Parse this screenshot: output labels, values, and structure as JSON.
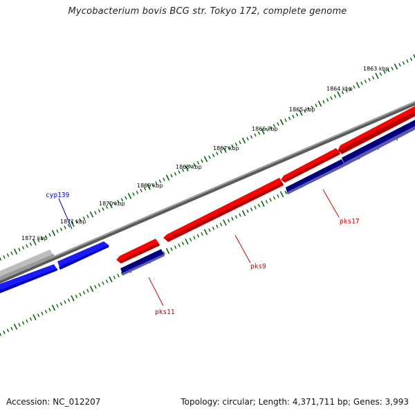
{
  "title": "Mycobacterium bovis BCG str. Tokyo 172, complete genome",
  "accession": "Accession: NC_012207",
  "summary": "Topology: circular; Length: 4,371,711 bp; Genes: 3,993",
  "colors": {
    "backbone": "#777777",
    "forward_gene": "#ff0000",
    "reverse_gene": "#000080",
    "highlight_gene": "#0000ff",
    "other_gene": "#bbbbbb",
    "tick": "#006400",
    "red_label": "#cc0000",
    "blue_label": "#0000cc"
  },
  "scale_ticks": [
    "1863 kbp",
    "1864 kbp",
    "1865 kbp",
    "1866 kbp",
    "1867 kbp",
    "1868 kbp",
    "1869 kbp",
    "1870 kbp",
    "1871 kbp",
    "1872 kbp"
  ],
  "gene_labels": [
    {
      "name": "cyp139",
      "color": "blue"
    },
    {
      "name": "pks17",
      "color": "red"
    },
    {
      "name": "pks9",
      "color": "red"
    },
    {
      "name": "pks11",
      "color": "red"
    }
  ]
}
